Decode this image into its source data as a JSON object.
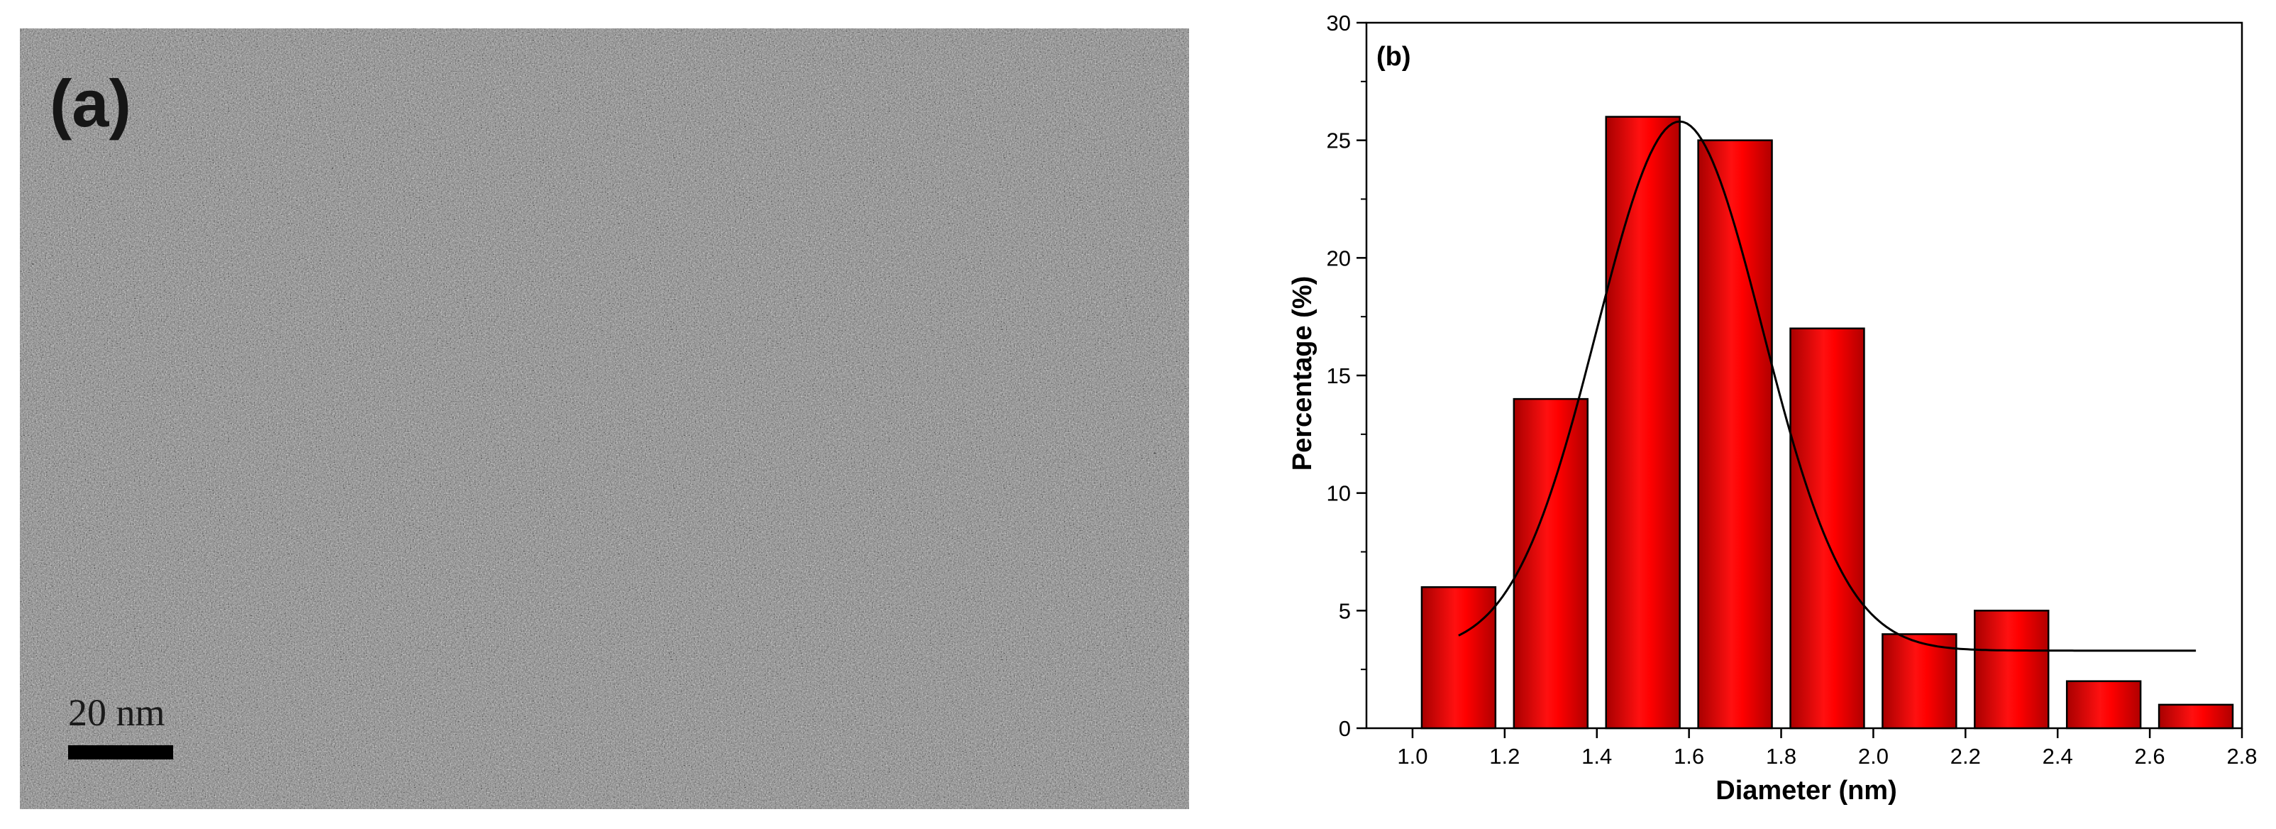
{
  "panel_a": {
    "label": "(a)",
    "scale_bar_text": "20 nm"
  },
  "panel_b": {
    "label": "(b)"
  },
  "colors": {
    "bar_fill": "#ff0000",
    "bar_dark": "#b00000",
    "fit_line": "#000000"
  },
  "chart_data": {
    "type": "bar",
    "title": "",
    "xlabel": "Diameter (nm)",
    "ylabel": "Percentage (%)",
    "xlim": [
      0.9,
      2.8
    ],
    "ylim": [
      0,
      30
    ],
    "x_ticks": [
      1.0,
      1.2,
      1.4,
      1.6,
      1.8,
      2.0,
      2.2,
      2.4,
      2.6,
      2.8
    ],
    "x_tick_labels": [
      "1.0",
      "1.2",
      "1.4",
      "1.6",
      "1.8",
      "2.0",
      "2.2",
      "2.4",
      "2.6",
      "2.8"
    ],
    "y_ticks": [
      0,
      5,
      10,
      15,
      20,
      25,
      30
    ],
    "y_tick_labels": [
      "0",
      "5",
      "10",
      "15",
      "20",
      "25",
      "30"
    ],
    "bin_width": 0.2,
    "bar_width": 0.16,
    "bin_centers": [
      1.1,
      1.3,
      1.5,
      1.7,
      1.9,
      2.1,
      2.3,
      2.5,
      2.7
    ],
    "values": [
      6,
      14,
      26,
      25,
      17,
      4,
      5,
      2,
      1
    ],
    "fit": {
      "type": "gaussian",
      "center": 1.58,
      "amplitude": 22.5,
      "sigma": 0.18,
      "baseline": 3.3,
      "x_range": [
        1.1,
        2.7
      ]
    },
    "grid": false,
    "legend": "none"
  }
}
